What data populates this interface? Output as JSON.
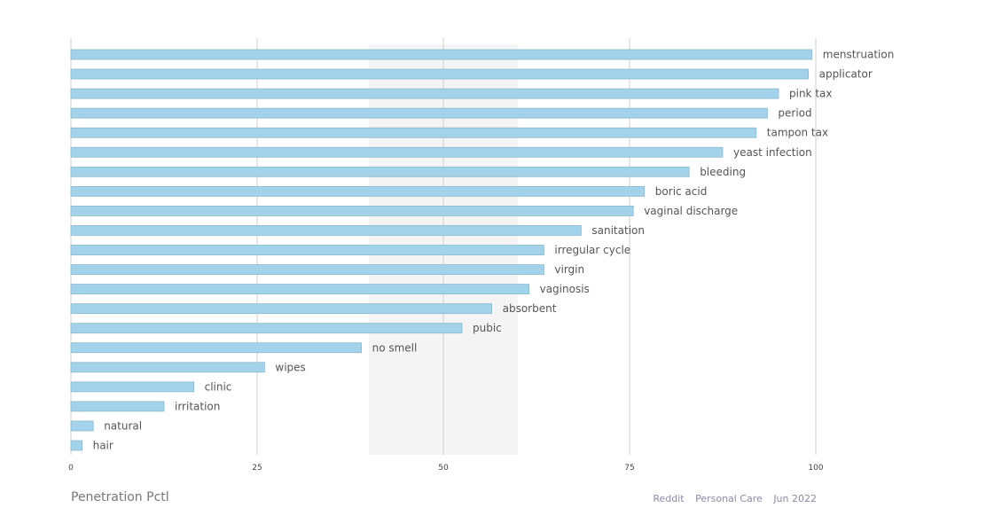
{
  "chart_data": {
    "type": "bar",
    "orientation": "horizontal",
    "categories": [
      "menstruation",
      "applicator",
      "pink tax",
      "period",
      "tampon tax",
      "yeast infection",
      "bleeding",
      "boric acid",
      "vaginal discharge",
      "sanitation",
      "irregular cycle",
      "virgin",
      "vaginosis",
      "absorbent",
      "pubic",
      "no smell",
      "wipes",
      "clinic",
      "irritation",
      "natural",
      "hair"
    ],
    "values": [
      99.5,
      99,
      95,
      93.5,
      92,
      87.5,
      83,
      77,
      75.5,
      68.5,
      63.5,
      63.5,
      61.5,
      56.5,
      52.5,
      39,
      26,
      16.5,
      12.5,
      3,
      1.5
    ],
    "xlim": [
      0,
      100
    ],
    "xticks": [
      "0",
      "25",
      "50",
      "75",
      "100"
    ],
    "highlight_band": [
      40,
      60
    ],
    "bar_color": "#a3d3ea",
    "xlabel": "Penetration Pctl",
    "grid": true
  },
  "footer": {
    "left": "Penetration Pctl",
    "source": "Reddit",
    "category": "Personal Care",
    "date": "Jun 2022"
  }
}
